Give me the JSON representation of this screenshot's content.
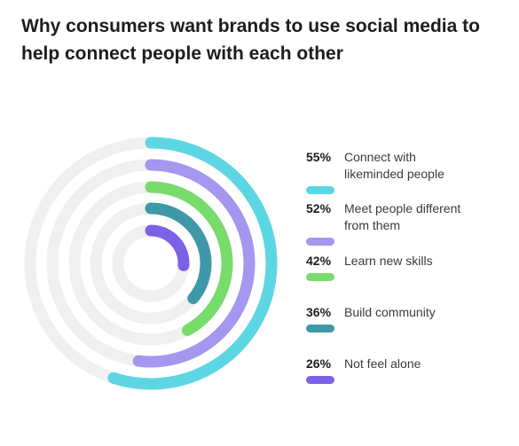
{
  "title": "Why consumers want brands to use social media to help connect people with each other",
  "chart_data": {
    "type": "radial-bar",
    "max": 100,
    "track_color": "#f0f0f0",
    "series": [
      {
        "value": 55,
        "value_label": "55%",
        "label_lines": [
          "Connect with",
          "likeminded people"
        ],
        "color": "#5dd6e3"
      },
      {
        "value": 52,
        "value_label": "52%",
        "label_lines": [
          "Meet people different",
          "from them"
        ],
        "color": "#a596f0"
      },
      {
        "value": 42,
        "value_label": "42%",
        "label_lines": [
          "Learn new skills"
        ],
        "color": "#78dc6c"
      },
      {
        "value": 36,
        "value_label": "36%",
        "label_lines": [
          "Build community"
        ],
        "color": "#3f98a8"
      },
      {
        "value": 26,
        "value_label": "26%",
        "label_lines": [
          "Not feel alone"
        ],
        "color": "#7c61e6"
      }
    ]
  }
}
